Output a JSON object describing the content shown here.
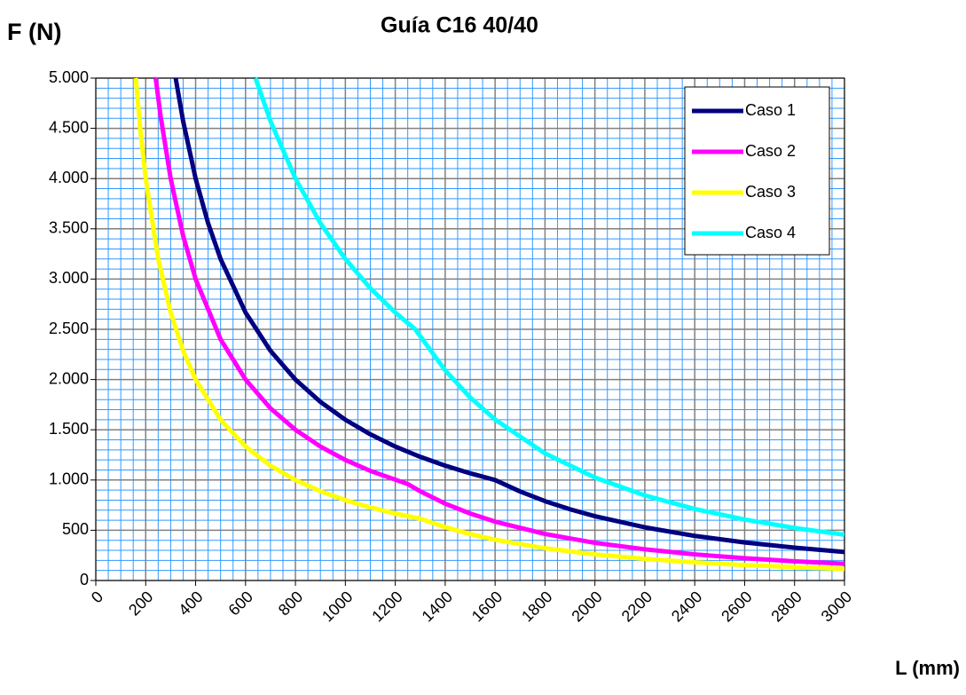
{
  "chart_data": {
    "type": "line",
    "title": "Guía C16 40/40",
    "y_label": "F (N)",
    "x_label": "L (mm)",
    "xlim": [
      0,
      3000
    ],
    "ylim": [
      0,
      5000
    ],
    "xticks": [
      0,
      200,
      400,
      600,
      800,
      1000,
      1200,
      1400,
      1600,
      1800,
      2000,
      2200,
      2400,
      2600,
      2800,
      3000
    ],
    "yticks": [
      0,
      500,
      {
        "value": 1000,
        "label": "1.000"
      },
      {
        "value": 1500,
        "label": "1.500"
      },
      {
        "value": 2000,
        "label": "2.000"
      },
      {
        "value": 2500,
        "label": "2.500"
      },
      {
        "value": 3000,
        "label": "3.000"
      },
      {
        "value": 3500,
        "label": "3.500"
      },
      {
        "value": 4000,
        "label": "4.000"
      },
      {
        "value": 4500,
        "label": "4.500"
      },
      {
        "value": 5000,
        "label": "5.000"
      }
    ],
    "xminor": [
      50,
      100,
      150,
      250,
      300,
      350,
      450,
      500,
      550,
      650,
      700,
      750,
      850,
      900,
      950,
      1050,
      1100,
      1150,
      1250,
      1300,
      1350,
      1450,
      1500,
      1550,
      1650,
      1700,
      1750,
      1850,
      1900,
      1950,
      2050,
      2100,
      2150,
      2250,
      2300,
      2350,
      2450,
      2500,
      2550,
      2650,
      2700,
      2750,
      2850,
      2900,
      2950
    ],
    "yminor": [
      100,
      200,
      300,
      400,
      600,
      700,
      800,
      900,
      1100,
      1200,
      1300,
      1400,
      1600,
      1700,
      1800,
      1900,
      2100,
      2200,
      2300,
      2400,
      2600,
      2700,
      2800,
      2900,
      3100,
      3200,
      3300,
      3400,
      3600,
      3700,
      3800,
      3900,
      4100,
      4200,
      4300,
      4400,
      4600,
      4700,
      4800,
      4900
    ],
    "grid": true,
    "legend": "upper right",
    "series": [
      {
        "name": "Caso 1",
        "color": "#000080",
        "x": [
          320,
          350,
          400,
          450,
          500,
          600,
          700,
          800,
          900,
          1000,
          1100,
          1200,
          1300,
          1400,
          1500,
          1600,
          1700,
          1800,
          1900,
          2000,
          2200,
          2400,
          2600,
          2800,
          3000
        ],
        "values": [
          5000,
          4571,
          4000,
          3556,
          3200,
          2667,
          2286,
          2000,
          1778,
          1600,
          1455,
          1333,
          1231,
          1143,
          1067,
          1000,
          886,
          790,
          709,
          640,
          529,
          444,
          379,
          327,
          284
        ]
      },
      {
        "name": "Caso 2",
        "color": "#ff00ff",
        "x": [
          240,
          260,
          300,
          350,
          400,
          500,
          600,
          700,
          800,
          900,
          1000,
          1100,
          1250,
          1300,
          1400,
          1500,
          1600,
          1800,
          2000,
          2200,
          2400,
          2600,
          2800,
          3000
        ],
        "values": [
          5000,
          4615,
          4000,
          3429,
          3000,
          2400,
          2000,
          1714,
          1500,
          1333,
          1200,
          1091,
          960,
          888,
          765,
          667,
          586,
          463,
          375,
          310,
          260,
          222,
          191,
          167
        ]
      },
      {
        "name": "Caso 3",
        "color": "#ffff00",
        "x": [
          160,
          180,
          200,
          250,
          300,
          350,
          400,
          500,
          600,
          700,
          800,
          900,
          1000,
          1100,
          1200,
          1300,
          1400,
          1500,
          1600,
          1800,
          2000,
          2200,
          2400,
          2600,
          2800,
          3000
        ],
        "values": [
          5000,
          4444,
          4000,
          3200,
          2667,
          2286,
          2000,
          1600,
          1333,
          1143,
          1000,
          889,
          800,
          727,
          667,
          615,
          531,
          462,
          406,
          321,
          260,
          215,
          181,
          154,
          133,
          116
        ]
      },
      {
        "name": "Caso 4",
        "color": "#00ffff",
        "x": [
          640,
          700,
          800,
          900,
          1000,
          1100,
          1200,
          1280,
          1400,
          1500,
          1600,
          1800,
          2000,
          2200,
          2400,
          2600,
          2800,
          3000
        ],
        "values": [
          5000,
          4571,
          4000,
          3556,
          3200,
          2909,
          2667,
          2500,
          2092,
          1822,
          1602,
          1265,
          1025,
          847,
          712,
          607,
          523,
          456
        ]
      }
    ]
  }
}
